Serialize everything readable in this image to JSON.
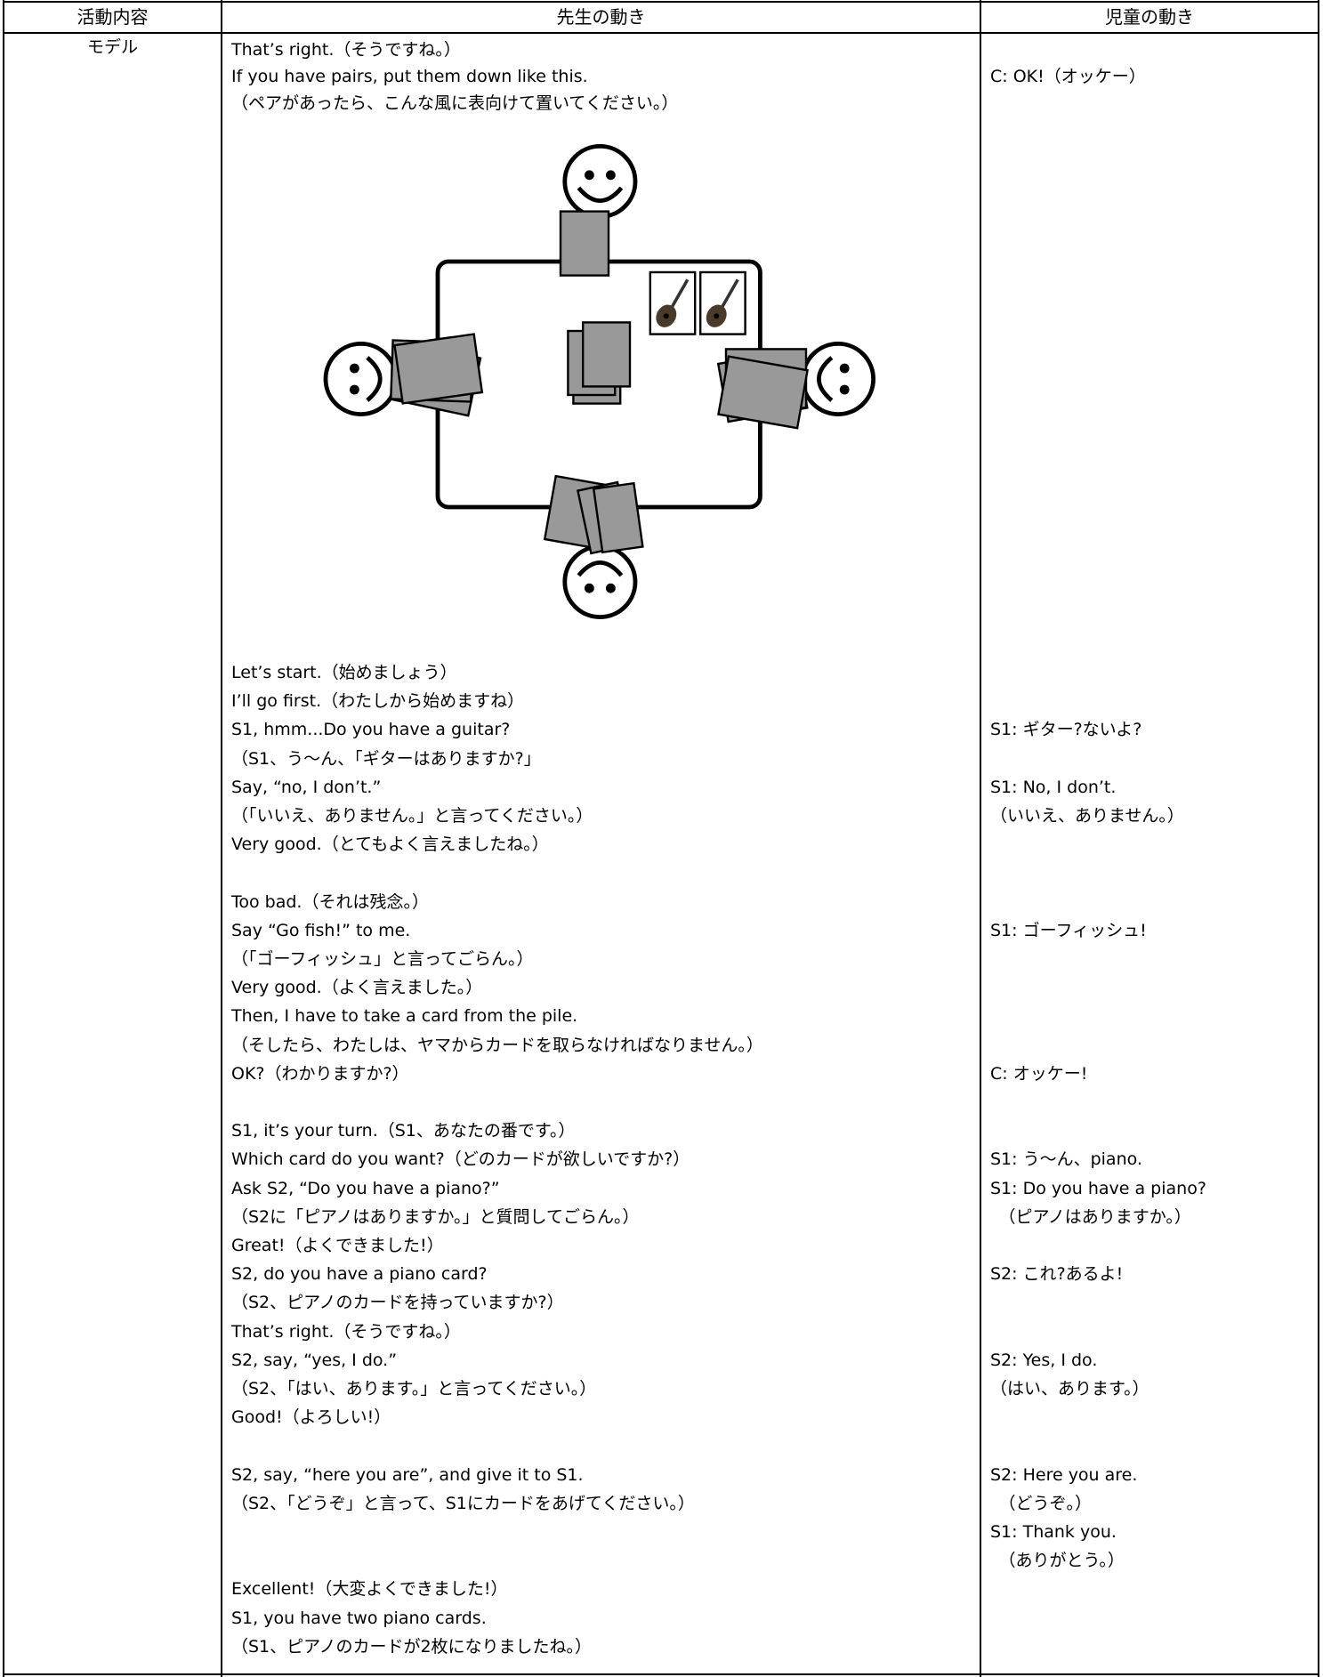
{
  "header": [
    "活動内容",
    "先生の動き",
    "児童の動き"
  ],
  "activity": "モデル",
  "top_rows": [
    {
      "teacher": "That’s right.（そうですね。）"
    },
    {
      "teacher": "If you have pairs, put them down like this.",
      "student": "C: OK!（オッケー）"
    },
    {
      "teacher": "（ペアがあったら、こんな風に表向けて置いてください。）"
    }
  ],
  "rows": [
    {
      "teacher": "Let’s start.（始めましょう）"
    },
    {
      "teacher": "I’ll go first.（わたしから始めますね）"
    },
    {
      "teacher": "S1, hmm...Do you have a guitar?",
      "student": "S1: ギター?ないよ?"
    },
    {
      "teacher": "（S1、う～ん、「ギターはありますか?」"
    },
    {
      "teacher": "Say, “no, I don’t.”",
      "student": "S1: No, I don’t."
    },
    {
      "teacher": "（「いいえ、ありません。」と言ってください。）",
      "student": "（いいえ、ありません。）"
    },
    {
      "teacher": "Very good.（とてもよく言えましたね。）"
    },
    {},
    {
      "teacher": "Too bad.（それは残念。）"
    },
    {
      "teacher": "Say “Go fish!” to me.",
      "student": "S1: ゴーフィッシュ!"
    },
    {
      "teacher": "（「ゴーフィッシュ」と言ってごらん。）"
    },
    {
      "teacher": "Very good.（よく言えました。）"
    },
    {
      "teacher": "Then, I have to take a card from the pile."
    },
    {
      "teacher": "（そしたら、わたしは、ヤマからカードを取らなければなりません。）"
    },
    {
      "teacher": "OK?（わかりますか?）",
      "student": "C: オッケー!"
    },
    {},
    {
      "teacher": "S1, it’s your turn.（S1、あなたの番です。）"
    },
    {
      "teacher": "Which card do you want?（どのカードが欲しいですか?）",
      "student": "S1: う～ん、piano."
    },
    {
      "teacher": "Ask S2, “Do you have a piano?”",
      "student": "S1: Do you have a piano?"
    },
    {
      "teacher": "（S2に「ピアノはありますか。」と質問してごらん。）",
      "student": "　（ピアノはありますか。）"
    },
    {
      "teacher": "Great!（よくできました!）"
    },
    {
      "teacher": "S2, do you have a piano card?",
      "student": "S2: これ?あるよ!"
    },
    {
      "teacher": "（S2、ピアノのカードを持っていますか?）"
    },
    {
      "teacher": "That’s right.（そうですね。）"
    },
    {
      "teacher": "S2, say, “yes, I do.”",
      "student": "S2: Yes, I do."
    },
    {
      "teacher": "（S2、「はい、あります。」と言ってください。）",
      "student": "（はい、あります。）"
    },
    {
      "teacher": "Good!（よろしい!）"
    },
    {},
    {
      "teacher": "S2, say, “here you are”, and give it to S1.",
      "student": "S2: Here you are."
    },
    {
      "teacher": "（S2、「どうぞ」と言って、S1にカードをあげてください。）",
      "student": "　（どうぞ。）"
    },
    {
      "student": "S1: Thank you."
    },
    {
      "student": "　（ありがとう。）"
    },
    {
      "teacher": "Excellent!（大変よくできました!）"
    },
    {
      "teacher": "S1, you have two piano cards."
    },
    {
      "teacher": "（S1、ピアノのカードが2枚になりましたね。）"
    }
  ]
}
